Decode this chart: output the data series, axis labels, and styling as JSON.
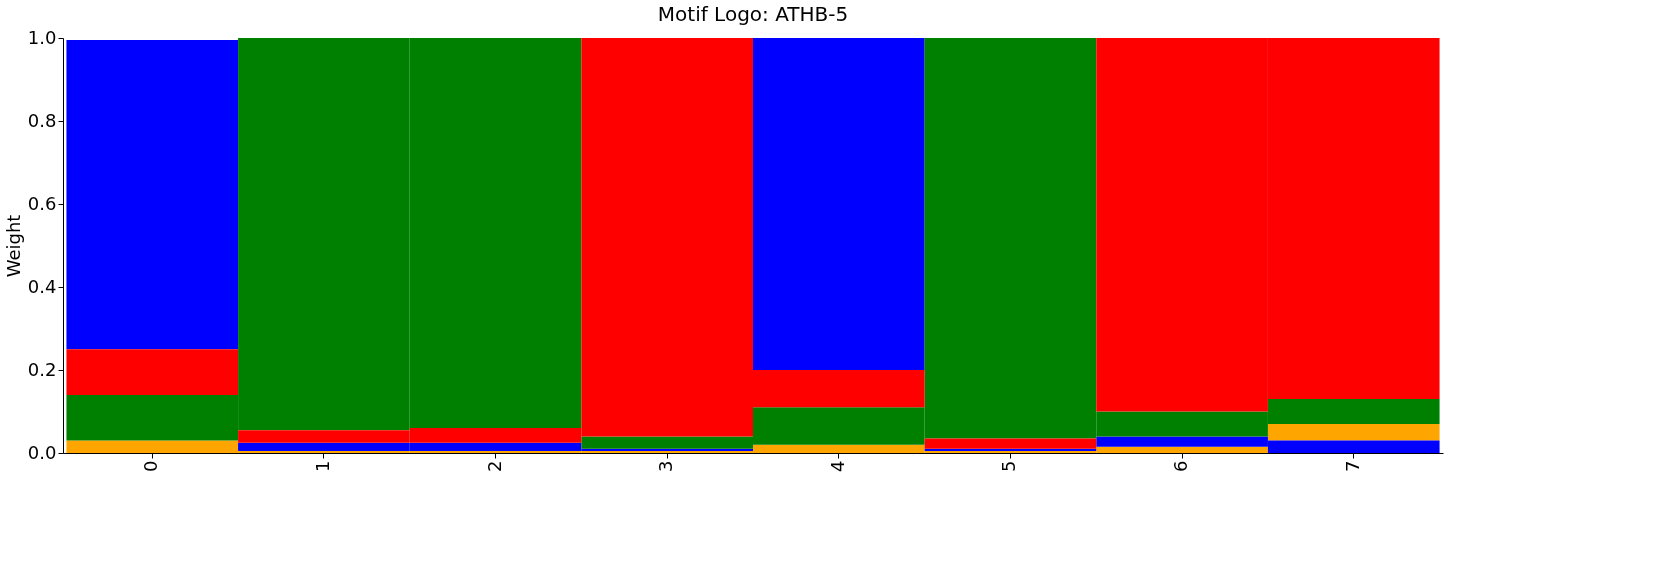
{
  "chart_data": {
    "type": "bar",
    "stacked": true,
    "title": "Motif Logo: ATHB-5",
    "ylabel": "Weight",
    "categories": [
      "0",
      "1",
      "2",
      "3",
      "4",
      "5",
      "6",
      "7"
    ],
    "series": [
      {
        "color": "#ffa500",
        "values": [
          0.03,
          0.005,
          0.005,
          0.005,
          0.02,
          0.005,
          0.015,
          0.04
        ]
      },
      {
        "color": "#0000ff",
        "values": [
          0.745,
          0.02,
          0.02,
          0.005,
          0.8,
          0.005,
          0.025,
          0.03
        ]
      },
      {
        "color": "#008000",
        "values": [
          0.11,
          0.945,
          0.94,
          0.03,
          0.09,
          0.965,
          0.06,
          0.06
        ]
      },
      {
        "color": "#ff0000",
        "values": [
          0.11,
          0.03,
          0.035,
          0.96,
          0.09,
          0.025,
          0.9,
          0.87
        ]
      }
    ],
    "ylim": [
      0,
      1
    ],
    "yticks": [
      {
        "value": 0,
        "label": "0.0"
      },
      0.2,
      0.4,
      0.6,
      0.8,
      {
        "value": 1,
        "label": "1.0"
      }
    ],
    "grid": false,
    "legend": false
  }
}
